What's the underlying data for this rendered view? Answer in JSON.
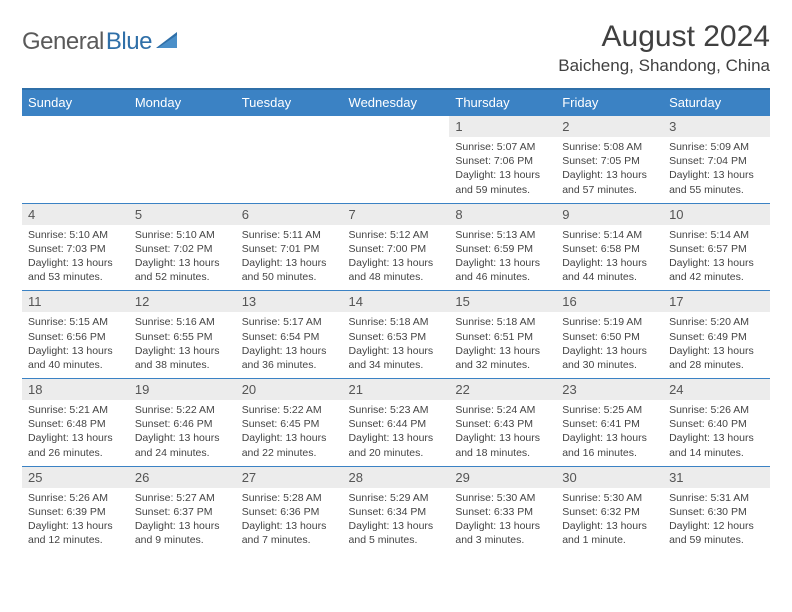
{
  "brand": {
    "part1": "General",
    "part2": "Blue"
  },
  "title": "August 2024",
  "location": "Baicheng, Shandong, China",
  "colors": {
    "header_bg": "#3b82c4",
    "header_border": "#2f6fa8",
    "daynum_bg": "#ececec",
    "brand_gray": "#5a5a5a",
    "brand_blue": "#2f6fa8"
  },
  "weekdays": [
    "Sunday",
    "Monday",
    "Tuesday",
    "Wednesday",
    "Thursday",
    "Friday",
    "Saturday"
  ],
  "weeks": [
    [
      null,
      null,
      null,
      null,
      {
        "n": "1",
        "sr": "5:07 AM",
        "ss": "7:06 PM",
        "dl": "13 hours and 59 minutes."
      },
      {
        "n": "2",
        "sr": "5:08 AM",
        "ss": "7:05 PM",
        "dl": "13 hours and 57 minutes."
      },
      {
        "n": "3",
        "sr": "5:09 AM",
        "ss": "7:04 PM",
        "dl": "13 hours and 55 minutes."
      }
    ],
    [
      {
        "n": "4",
        "sr": "5:10 AM",
        "ss": "7:03 PM",
        "dl": "13 hours and 53 minutes."
      },
      {
        "n": "5",
        "sr": "5:10 AM",
        "ss": "7:02 PM",
        "dl": "13 hours and 52 minutes."
      },
      {
        "n": "6",
        "sr": "5:11 AM",
        "ss": "7:01 PM",
        "dl": "13 hours and 50 minutes."
      },
      {
        "n": "7",
        "sr": "5:12 AM",
        "ss": "7:00 PM",
        "dl": "13 hours and 48 minutes."
      },
      {
        "n": "8",
        "sr": "5:13 AM",
        "ss": "6:59 PM",
        "dl": "13 hours and 46 minutes."
      },
      {
        "n": "9",
        "sr": "5:14 AM",
        "ss": "6:58 PM",
        "dl": "13 hours and 44 minutes."
      },
      {
        "n": "10",
        "sr": "5:14 AM",
        "ss": "6:57 PM",
        "dl": "13 hours and 42 minutes."
      }
    ],
    [
      {
        "n": "11",
        "sr": "5:15 AM",
        "ss": "6:56 PM",
        "dl": "13 hours and 40 minutes."
      },
      {
        "n": "12",
        "sr": "5:16 AM",
        "ss": "6:55 PM",
        "dl": "13 hours and 38 minutes."
      },
      {
        "n": "13",
        "sr": "5:17 AM",
        "ss": "6:54 PM",
        "dl": "13 hours and 36 minutes."
      },
      {
        "n": "14",
        "sr": "5:18 AM",
        "ss": "6:53 PM",
        "dl": "13 hours and 34 minutes."
      },
      {
        "n": "15",
        "sr": "5:18 AM",
        "ss": "6:51 PM",
        "dl": "13 hours and 32 minutes."
      },
      {
        "n": "16",
        "sr": "5:19 AM",
        "ss": "6:50 PM",
        "dl": "13 hours and 30 minutes."
      },
      {
        "n": "17",
        "sr": "5:20 AM",
        "ss": "6:49 PM",
        "dl": "13 hours and 28 minutes."
      }
    ],
    [
      {
        "n": "18",
        "sr": "5:21 AM",
        "ss": "6:48 PM",
        "dl": "13 hours and 26 minutes."
      },
      {
        "n": "19",
        "sr": "5:22 AM",
        "ss": "6:46 PM",
        "dl": "13 hours and 24 minutes."
      },
      {
        "n": "20",
        "sr": "5:22 AM",
        "ss": "6:45 PM",
        "dl": "13 hours and 22 minutes."
      },
      {
        "n": "21",
        "sr": "5:23 AM",
        "ss": "6:44 PM",
        "dl": "13 hours and 20 minutes."
      },
      {
        "n": "22",
        "sr": "5:24 AM",
        "ss": "6:43 PM",
        "dl": "13 hours and 18 minutes."
      },
      {
        "n": "23",
        "sr": "5:25 AM",
        "ss": "6:41 PM",
        "dl": "13 hours and 16 minutes."
      },
      {
        "n": "24",
        "sr": "5:26 AM",
        "ss": "6:40 PM",
        "dl": "13 hours and 14 minutes."
      }
    ],
    [
      {
        "n": "25",
        "sr": "5:26 AM",
        "ss": "6:39 PM",
        "dl": "13 hours and 12 minutes."
      },
      {
        "n": "26",
        "sr": "5:27 AM",
        "ss": "6:37 PM",
        "dl": "13 hours and 9 minutes."
      },
      {
        "n": "27",
        "sr": "5:28 AM",
        "ss": "6:36 PM",
        "dl": "13 hours and 7 minutes."
      },
      {
        "n": "28",
        "sr": "5:29 AM",
        "ss": "6:34 PM",
        "dl": "13 hours and 5 minutes."
      },
      {
        "n": "29",
        "sr": "5:30 AM",
        "ss": "6:33 PM",
        "dl": "13 hours and 3 minutes."
      },
      {
        "n": "30",
        "sr": "5:30 AM",
        "ss": "6:32 PM",
        "dl": "13 hours and 1 minute."
      },
      {
        "n": "31",
        "sr": "5:31 AM",
        "ss": "6:30 PM",
        "dl": "12 hours and 59 minutes."
      }
    ]
  ],
  "labels": {
    "sunrise": "Sunrise:",
    "sunset": "Sunset:",
    "daylight": "Daylight:"
  }
}
